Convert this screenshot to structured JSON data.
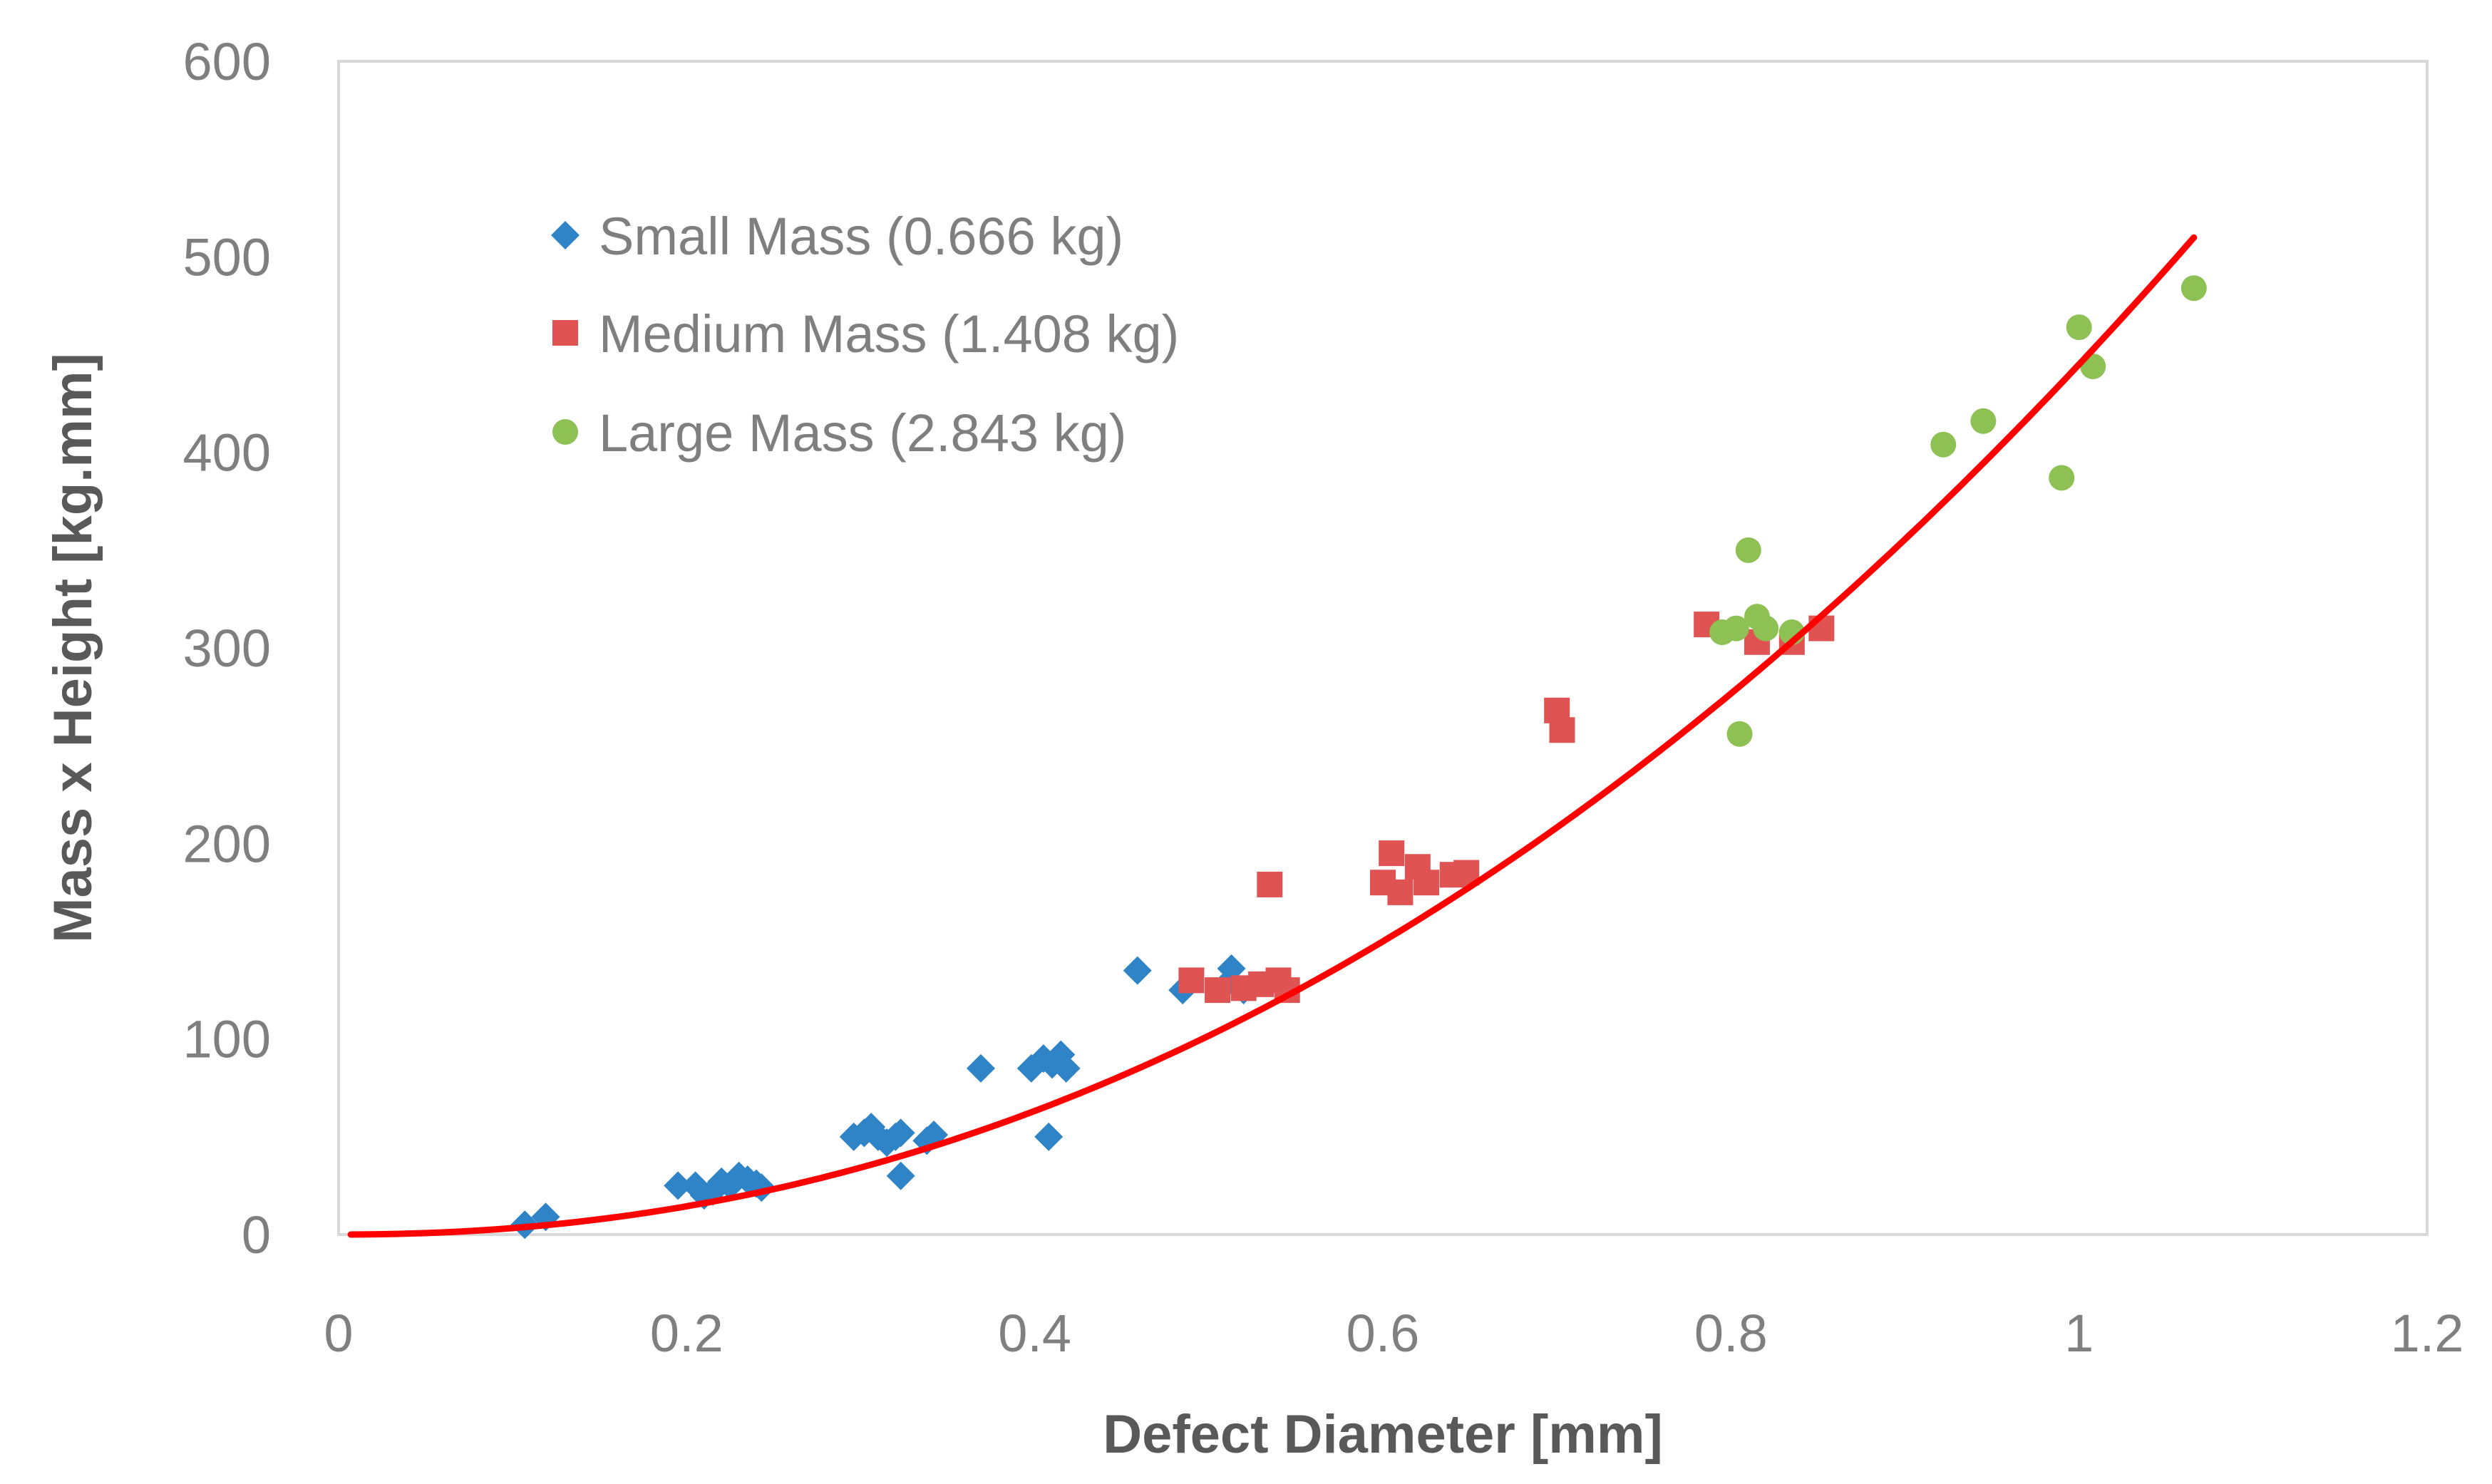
{
  "chart_data": {
    "type": "scatter",
    "title": "",
    "xlabel": "Defect Diameter [mm]",
    "ylabel": "Mass x Height [kg.mm]",
    "xlim": [
      0,
      1.2
    ],
    "ylim": [
      0,
      600
    ],
    "xticks": [
      0,
      0.2,
      0.4,
      0.6,
      0.8,
      1,
      1.2
    ],
    "xtick_labels": [
      "0",
      "0.2",
      "0.4",
      "0.6",
      "0.8",
      "1",
      "1.2"
    ],
    "yticks": [
      0,
      100,
      200,
      300,
      400,
      500,
      600
    ],
    "ytick_labels": [
      "0",
      "100",
      "200",
      "300",
      "400",
      "500",
      "600"
    ],
    "grid": false,
    "legend_position": "top-left",
    "series": [
      {
        "name": "Small Mass (0.666 kg)",
        "marker": "diamond",
        "color": "#2e84c6",
        "points": [
          [
            0.107,
            5
          ],
          [
            0.119,
            9
          ],
          [
            0.195,
            25
          ],
          [
            0.205,
            25
          ],
          [
            0.21,
            20
          ],
          [
            0.215,
            22
          ],
          [
            0.22,
            27
          ],
          [
            0.225,
            25
          ],
          [
            0.23,
            30
          ],
          [
            0.235,
            28
          ],
          [
            0.24,
            26
          ],
          [
            0.243,
            24
          ],
          [
            0.296,
            50
          ],
          [
            0.302,
            52
          ],
          [
            0.306,
            55
          ],
          [
            0.31,
            50
          ],
          [
            0.315,
            47
          ],
          [
            0.32,
            50
          ],
          [
            0.323,
            52
          ],
          [
            0.323,
            30
          ],
          [
            0.338,
            48
          ],
          [
            0.342,
            51
          ],
          [
            0.369,
            85
          ],
          [
            0.398,
            85
          ],
          [
            0.405,
            90
          ],
          [
            0.408,
            50
          ],
          [
            0.41,
            87
          ],
          [
            0.415,
            92
          ],
          [
            0.418,
            85
          ],
          [
            0.459,
            135
          ],
          [
            0.485,
            125
          ],
          [
            0.51,
            128
          ],
          [
            0.513,
            136
          ],
          [
            0.52,
            125
          ]
        ]
      },
      {
        "name": "Medium Mass (1.408 kg)",
        "marker": "square",
        "color": "#e05353",
        "points": [
          [
            0.49,
            130
          ],
          [
            0.505,
            125
          ],
          [
            0.52,
            126
          ],
          [
            0.53,
            128
          ],
          [
            0.535,
            179
          ],
          [
            0.54,
            130
          ],
          [
            0.545,
            125
          ],
          [
            0.6,
            180
          ],
          [
            0.605,
            195
          ],
          [
            0.61,
            175
          ],
          [
            0.62,
            188
          ],
          [
            0.625,
            180
          ],
          [
            0.64,
            184
          ],
          [
            0.648,
            185
          ],
          [
            0.7,
            268
          ],
          [
            0.703,
            258
          ],
          [
            0.786,
            312
          ],
          [
            0.815,
            303
          ],
          [
            0.835,
            303
          ],
          [
            0.852,
            310
          ]
        ]
      },
      {
        "name": "Large Mass (2.843 kg)",
        "marker": "circle",
        "color": "#8dc153",
        "points": [
          [
            0.795,
            308
          ],
          [
            0.803,
            310
          ],
          [
            0.805,
            256
          ],
          [
            0.81,
            350
          ],
          [
            0.815,
            316
          ],
          [
            0.82,
            310
          ],
          [
            0.835,
            308
          ],
          [
            0.922,
            404
          ],
          [
            0.945,
            416
          ],
          [
            0.99,
            387
          ],
          [
            1.0,
            464
          ],
          [
            1.008,
            444
          ],
          [
            1.066,
            484
          ]
        ]
      }
    ],
    "trendline": {
      "type": "power",
      "color": "#ff0000",
      "coefficient": 445,
      "exponent": 2.13,
      "x_range": [
        0.007,
        1.066
      ]
    }
  }
}
